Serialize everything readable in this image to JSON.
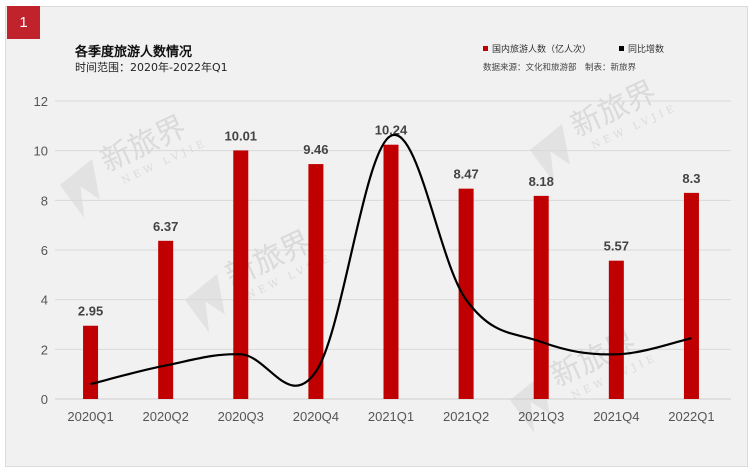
{
  "header": {
    "badge": "1",
    "title": "各季度旅游人数情况",
    "subtitle": "时间范围：2020年-2022年Q1",
    "legend": [
      {
        "label": "国内旅游人数（亿人次）",
        "color": "#c00000"
      },
      {
        "label": "同比增数",
        "color": "#000000"
      }
    ],
    "source": "数据来源：文化和旅游部　制表：新旅界"
  },
  "watermark": {
    "text": "新旅界",
    "sub": "NEW LVJIE"
  },
  "colors": {
    "bar": "#c00000",
    "line": "#000000",
    "grid": "#d9d9d9",
    "background": "#f1f1f1",
    "badge": "#c0232b"
  },
  "chart_data": {
    "type": "bar",
    "title": "各季度旅游人数情况",
    "subtitle": "时间范围：2020年-2022年Q1",
    "xlabel": "",
    "ylabel": "",
    "ylim": [
      0,
      12
    ],
    "yticks": [
      0,
      2,
      4,
      6,
      8,
      10,
      12
    ],
    "grid": true,
    "legend_position": "top-right",
    "categories": [
      "2020Q1",
      "2020Q2",
      "2020Q3",
      "2020Q4",
      "2021Q1",
      "2021Q2",
      "2021Q3",
      "2021Q4",
      "2022Q1"
    ],
    "series": [
      {
        "name": "国内旅游人数（亿人次）",
        "type": "bar",
        "values": [
          2.95,
          6.37,
          10.01,
          9.46,
          10.24,
          8.47,
          8.18,
          5.57,
          8.3
        ],
        "labels": [
          "2.95",
          "6.37",
          "10.01",
          "9.46",
          "10.24",
          "8.47",
          "8.18",
          "5.57",
          "8.3"
        ]
      },
      {
        "name": "同比增数",
        "type": "line",
        "smooth": true,
        "values": [
          0.6,
          1.35,
          1.8,
          1.1,
          10.6,
          4.0,
          2.3,
          1.8,
          2.45
        ]
      }
    ],
    "annotations": [
      "数据来源：文化和旅游部",
      "制表：新旅界"
    ]
  }
}
